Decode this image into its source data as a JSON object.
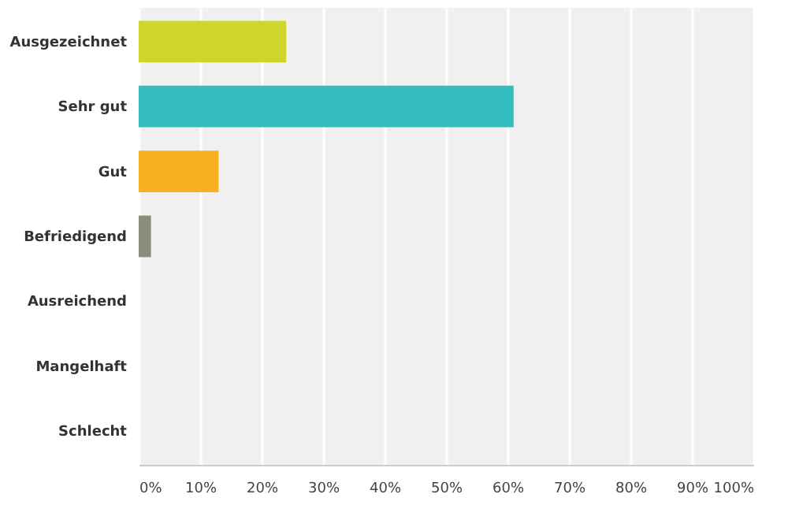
{
  "chart_data": {
    "type": "bar",
    "orientation": "horizontal",
    "categories": [
      "Ausgezeichnet",
      "Sehr gut",
      "Gut",
      "Befriedigend",
      "Ausreichend",
      "Mangelhaft",
      "Schlecht"
    ],
    "values": [
      24,
      61,
      13,
      2,
      0,
      0,
      0
    ],
    "colors": [
      "#d0d52a",
      "#33bdbf",
      "#f8af20",
      "#8c8c7c",
      "#cccccc",
      "#cccccc",
      "#cccccc"
    ],
    "xlim": [
      0,
      100
    ],
    "xticks": [
      {
        "value": 0,
        "label": "0%"
      },
      {
        "value": 10,
        "label": "10%"
      },
      {
        "value": 20,
        "label": "20%"
      },
      {
        "value": 30,
        "label": "30%"
      },
      {
        "value": 40,
        "label": "40%"
      },
      {
        "value": 50,
        "label": "50%"
      },
      {
        "value": 60,
        "label": "60%"
      },
      {
        "value": 70,
        "label": "70%"
      },
      {
        "value": 80,
        "label": "80%"
      },
      {
        "value": 90,
        "label": "90%"
      },
      {
        "value": 100,
        "label": "100%"
      }
    ],
    "grid": "x"
  }
}
